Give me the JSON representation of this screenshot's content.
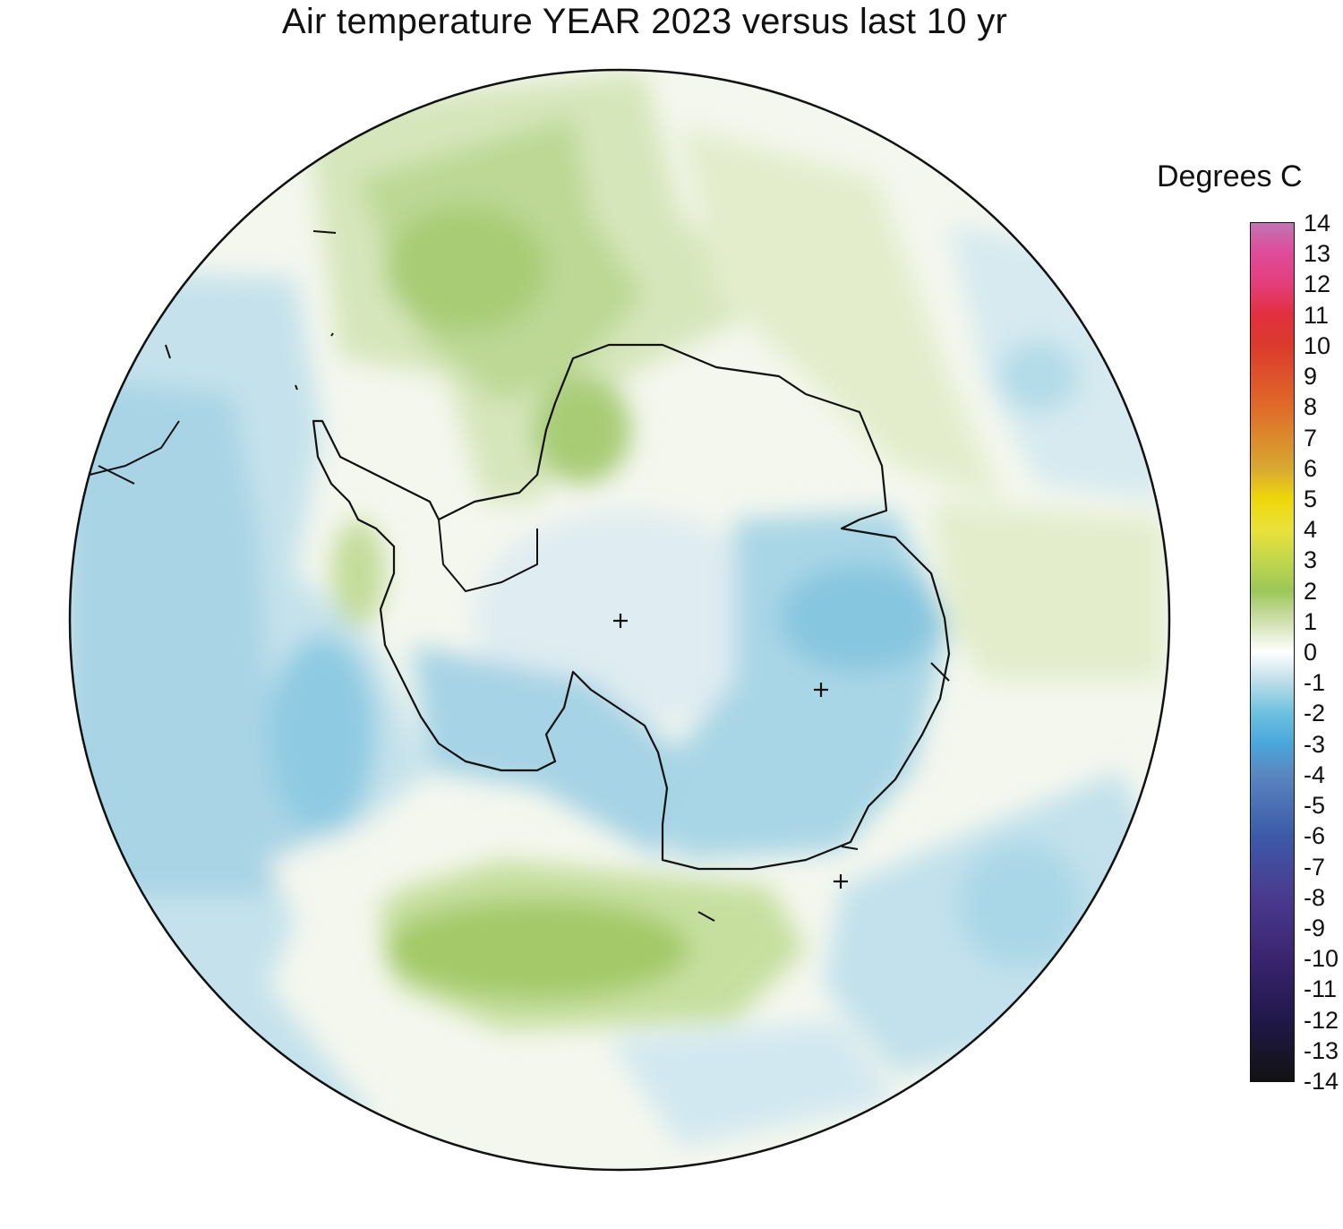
{
  "title": "Air temperature YEAR 2023 versus last 10 yr",
  "units_label": "Degrees C",
  "colorbar": {
    "ticks": [
      "14",
      "13",
      "12",
      "11",
      "10",
      "9",
      "8",
      "7",
      "6",
      "5",
      "4",
      "3",
      "2",
      "1",
      "0",
      "-1",
      "-2",
      "-3",
      "-4",
      "-5",
      "-6",
      "-7",
      "-8",
      "-9",
      "-10",
      "-11",
      "-12",
      "-13",
      "-14"
    ],
    "range": [
      -14,
      14
    ],
    "stops": [
      {
        "value": 14,
        "color": "#c274b4"
      },
      {
        "value": 13,
        "color": "#e04a9a"
      },
      {
        "value": 12,
        "color": "#e33e7a"
      },
      {
        "value": 11,
        "color": "#e22f3f"
      },
      {
        "value": 10,
        "color": "#dc3a2c"
      },
      {
        "value": 8,
        "color": "#e06a2a"
      },
      {
        "value": 6,
        "color": "#d8a830"
      },
      {
        "value": 5,
        "color": "#efd60a"
      },
      {
        "value": 4,
        "color": "#eae23a"
      },
      {
        "value": 3,
        "color": "#c2d64c"
      },
      {
        "value": 2,
        "color": "#9cc65a"
      },
      {
        "value": 1,
        "color": "#d0e0ae"
      },
      {
        "value": 0,
        "color": "#ffffff"
      },
      {
        "value": -1,
        "color": "#b9dce8"
      },
      {
        "value": -2,
        "color": "#6cc0e0"
      },
      {
        "value": -3,
        "color": "#4aa6da"
      },
      {
        "value": -4,
        "color": "#5a86c0"
      },
      {
        "value": -6,
        "color": "#3c5aa8"
      },
      {
        "value": -8,
        "color": "#4a3a8e"
      },
      {
        "value": -10,
        "color": "#3a2470"
      },
      {
        "value": -12,
        "color": "#20184a"
      },
      {
        "value": -14,
        "color": "#121212"
      }
    ]
  },
  "map": {
    "projection": "south polar stereographic",
    "markers": [
      "plus-marker",
      "plus-marker",
      "plus-marker"
    ]
  }
}
